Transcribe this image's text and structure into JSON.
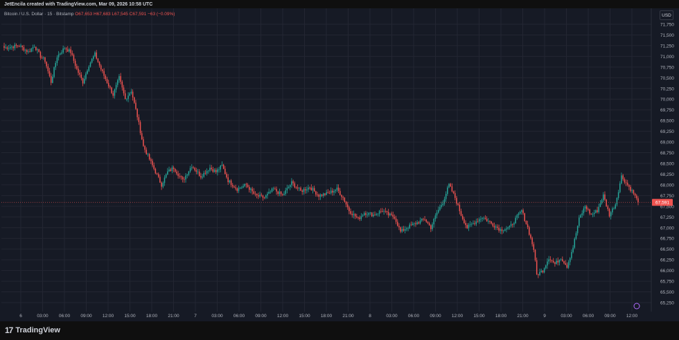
{
  "header": {
    "credit": "JetEncila created with TradingView.com, Mar 09, 2026 10:58 UTC"
  },
  "legend": {
    "symbol": "Bitcoin / U.S. Dollar · 15 · Bitstamp",
    "open": "O67,653",
    "high": "H67,683",
    "low": "L67,545",
    "close": "C67,591",
    "change": "−63 (−0.09%)"
  },
  "currency_label": "USD",
  "last_price_label": "67,591",
  "footer": {
    "brand": "TradingView"
  },
  "colors": {
    "up": "#26a69a",
    "down": "#ef5350",
    "background": "#161a25",
    "grid": "#232632",
    "text": "#b2b5be"
  },
  "chart_data": {
    "type": "candlestick",
    "interval": "15",
    "ylim": [
      65250,
      71900
    ],
    "y_ticks": [
      65250,
      65500,
      65750,
      66000,
      66250,
      66500,
      66750,
      67000,
      67250,
      67500,
      67750,
      68000,
      68250,
      68500,
      68750,
      69000,
      69250,
      69500,
      69750,
      70000,
      70250,
      70500,
      70750,
      71000,
      71250,
      71500,
      71750
    ],
    "x_ticks": [
      "6",
      "03:00",
      "06:00",
      "09:00",
      "12:00",
      "15:00",
      "18:00",
      "21:00",
      "7",
      "03:00",
      "06:00",
      "09:00",
      "12:00",
      "15:00",
      "18:00",
      "21:00",
      "8",
      "03:00",
      "06:00",
      "09:00",
      "12:00",
      "15:00",
      "18:00",
      "21:00",
      "9",
      "03:00",
      "06:00",
      "09:00",
      "12:00"
    ],
    "last_price": 67591,
    "close_path": [
      [
        0,
        71200
      ],
      [
        10,
        71250
      ],
      [
        16,
        71100
      ],
      [
        20,
        71250
      ],
      [
        24,
        71000
      ],
      [
        27,
        70900
      ],
      [
        31,
        70400
      ],
      [
        35,
        71000
      ],
      [
        40,
        71200
      ],
      [
        44,
        71100
      ],
      [
        48,
        70700
      ],
      [
        52,
        70400
      ],
      [
        56,
        70800
      ],
      [
        60,
        71050
      ],
      [
        64,
        70700
      ],
      [
        68,
        70400
      ],
      [
        72,
        70100
      ],
      [
        76,
        70500
      ],
      [
        80,
        70000
      ],
      [
        84,
        70200
      ],
      [
        88,
        69600
      ],
      [
        92,
        68900
      ],
      [
        96,
        68600
      ],
      [
        100,
        68300
      ],
      [
        104,
        68000
      ],
      [
        108,
        68300
      ],
      [
        112,
        68400
      ],
      [
        118,
        68100
      ],
      [
        124,
        68450
      ],
      [
        130,
        68200
      ],
      [
        136,
        68400
      ],
      [
        140,
        68300
      ],
      [
        144,
        68450
      ],
      [
        148,
        68100
      ],
      [
        154,
        67900
      ],
      [
        160,
        68000
      ],
      [
        166,
        67750
      ],
      [
        172,
        67700
      ],
      [
        178,
        67900
      ],
      [
        184,
        67750
      ],
      [
        190,
        68050
      ],
      [
        196,
        67850
      ],
      [
        202,
        67950
      ],
      [
        208,
        67750
      ],
      [
        214,
        67800
      ],
      [
        220,
        67900
      ],
      [
        224,
        67700
      ],
      [
        228,
        67400
      ],
      [
        234,
        67200
      ],
      [
        238,
        67350
      ],
      [
        244,
        67300
      ],
      [
        250,
        67400
      ],
      [
        254,
        67300
      ],
      [
        258,
        67250
      ],
      [
        262,
        66900
      ],
      [
        266,
        67000
      ],
      [
        272,
        67100
      ],
      [
        278,
        67200
      ],
      [
        282,
        67000
      ],
      [
        286,
        67350
      ],
      [
        290,
        67600
      ],
      [
        294,
        68000
      ],
      [
        298,
        67700
      ],
      [
        302,
        67300
      ],
      [
        306,
        67000
      ],
      [
        310,
        67100
      ],
      [
        316,
        67250
      ],
      [
        322,
        67100
      ],
      [
        328,
        66950
      ],
      [
        334,
        67000
      ],
      [
        338,
        67200
      ],
      [
        342,
        67400
      ],
      [
        346,
        67000
      ],
      [
        350,
        66500
      ],
      [
        352,
        65900
      ],
      [
        356,
        66000
      ],
      [
        360,
        66300
      ],
      [
        364,
        66150
      ],
      [
        368,
        66300
      ],
      [
        372,
        66100
      ],
      [
        376,
        66550
      ],
      [
        380,
        67200
      ],
      [
        384,
        67500
      ],
      [
        388,
        67300
      ],
      [
        392,
        67400
      ],
      [
        396,
        67750
      ],
      [
        400,
        67300
      ],
      [
        404,
        67550
      ],
      [
        408,
        68200
      ],
      [
        412,
        68000
      ],
      [
        416,
        67800
      ],
      [
        419,
        67591
      ]
    ]
  }
}
